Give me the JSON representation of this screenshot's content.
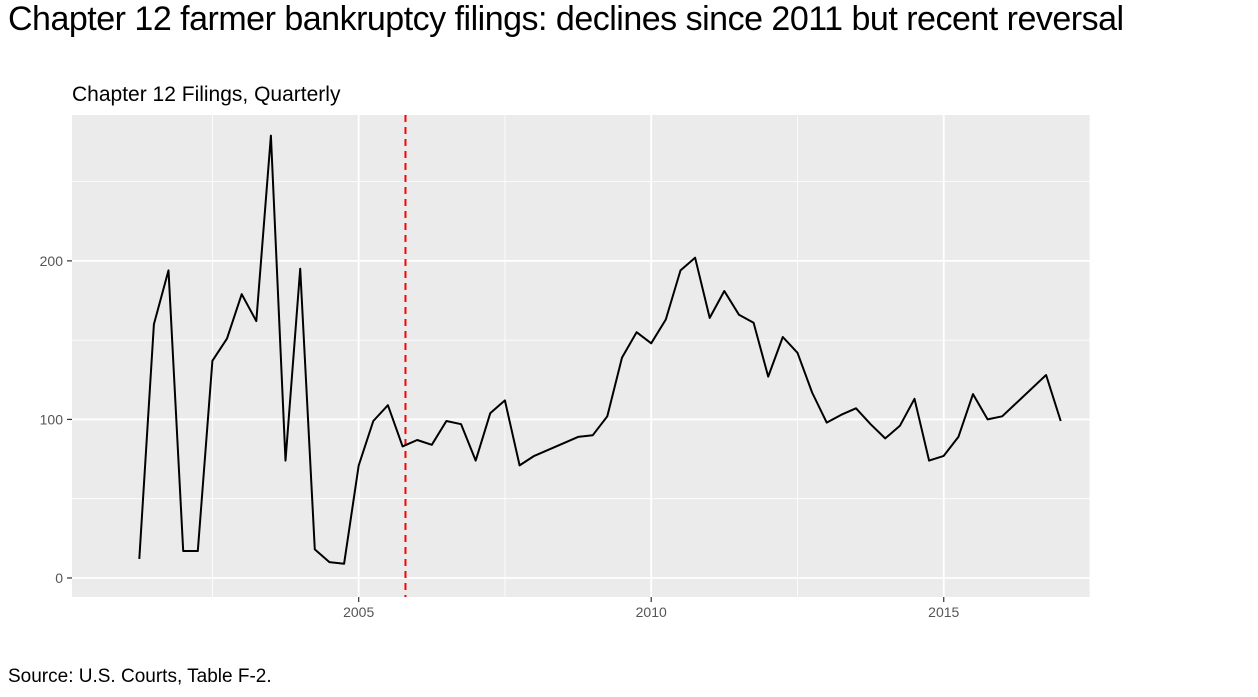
{
  "page": {
    "headline": "Chapter 12 farmer bankruptcy filings: declines since 2011 but recent reversal",
    "source": "Source: U.S. Courts, Table F-2."
  },
  "chart_data": {
    "type": "line",
    "title": "Chapter 12 Filings, Quarterly",
    "xlabel": "",
    "ylabel": "",
    "xlim": [
      2000.1,
      2017.5
    ],
    "ylim": [
      -12,
      292
    ],
    "x_ticks": [
      2005,
      2010,
      2015
    ],
    "x_tick_labels": [
      "2005",
      "2010",
      "2015"
    ],
    "y_ticks": [
      0,
      100,
      200
    ],
    "y_tick_labels": [
      "0",
      "100",
      "200"
    ],
    "grid": true,
    "vline": {
      "x": 2005.8,
      "color": "#ff0000",
      "style": "dashed"
    },
    "line_color": "#000000",
    "panel_color": "#ebebeb",
    "series": [
      {
        "x": [
          2001.25,
          2001.5,
          2001.75,
          2002.0,
          2002.25,
          2002.5,
          2002.75,
          2003.0,
          2003.25,
          2003.5,
          2003.75,
          2004.0,
          2004.25,
          2004.5,
          2004.75,
          2005.0,
          2005.25,
          2005.5,
          2005.75,
          2006.0,
          2006.25,
          2006.5,
          2006.75,
          2007.0,
          2007.25,
          2007.5,
          2007.75,
          2008.0,
          2008.75,
          2009.0,
          2009.25,
          2009.5,
          2009.75,
          2010.0,
          2010.25,
          2010.5,
          2010.75,
          2011.0,
          2011.25,
          2011.5,
          2011.75,
          2012.0,
          2012.25,
          2012.5,
          2012.75,
          2013.0,
          2013.25,
          2013.5,
          2013.75,
          2014.0,
          2014.25,
          2014.5,
          2014.75,
          2015.0,
          2015.25,
          2015.5,
          2015.75,
          2016.0,
          2016.75,
          2017.0
        ],
        "values": [
          12,
          160,
          194,
          17,
          17,
          137,
          151,
          179,
          162,
          279,
          74,
          195,
          18,
          10,
          9,
          71,
          99,
          109,
          83,
          87,
          84,
          99,
          97,
          74,
          104,
          112,
          71,
          77,
          89,
          90,
          102,
          139,
          155,
          148,
          163,
          194,
          202,
          164,
          181,
          166,
          161,
          127,
          152,
          142,
          117,
          98,
          103,
          107,
          97,
          88,
          96,
          113,
          74,
          77,
          89,
          116,
          100,
          102,
          128,
          99
        ]
      }
    ]
  }
}
